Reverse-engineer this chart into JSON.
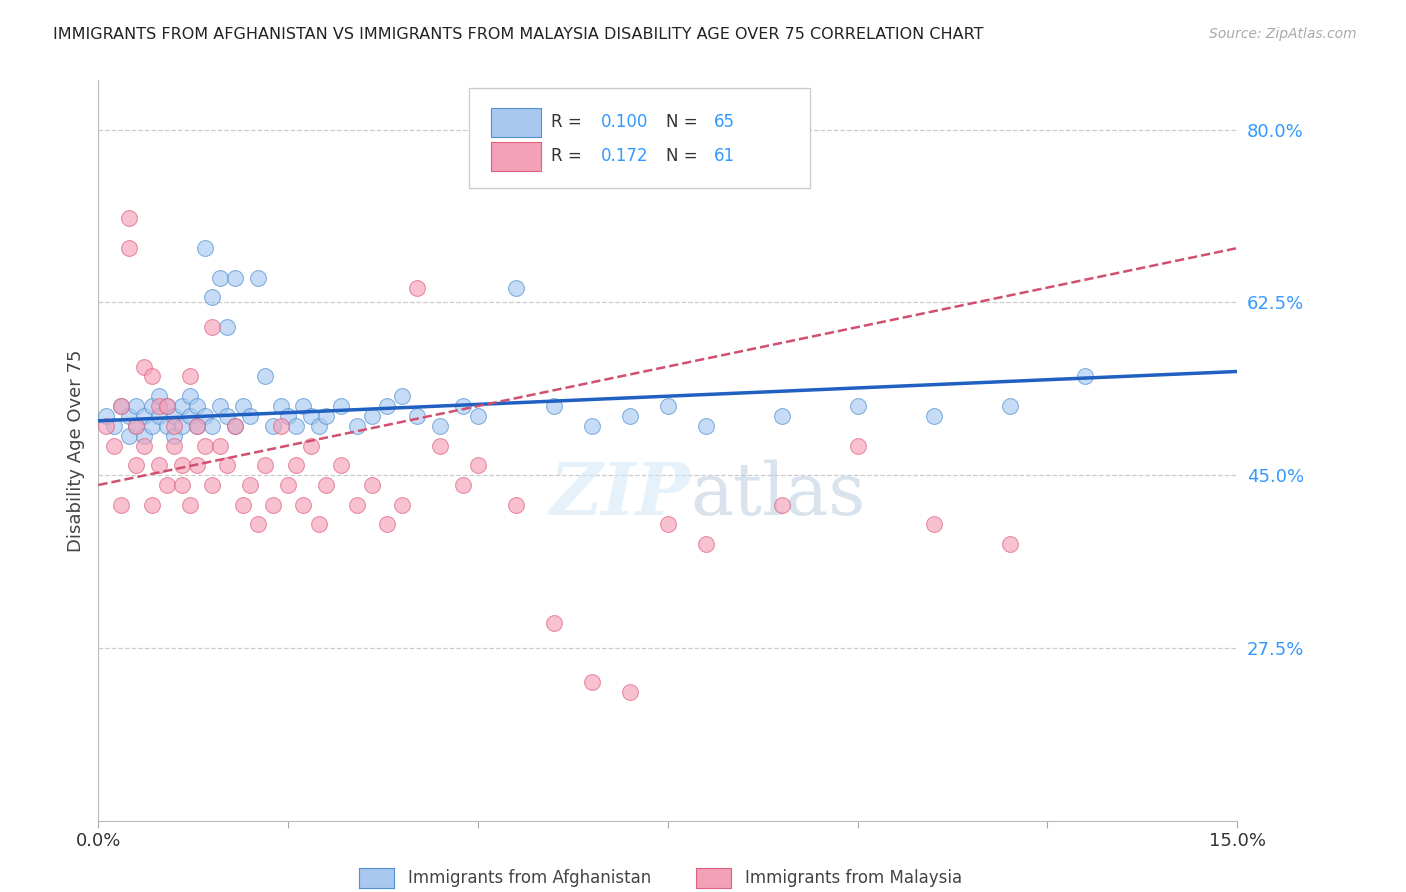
{
  "title": "IMMIGRANTS FROM AFGHANISTAN VS IMMIGRANTS FROM MALAYSIA DISABILITY AGE OVER 75 CORRELATION CHART",
  "source": "Source: ZipAtlas.com",
  "ylabel": "Disability Age Over 75",
  "ylabel_ticks": [
    "80.0%",
    "62.5%",
    "45.0%",
    "27.5%"
  ],
  "ylabel_values": [
    0.8,
    0.625,
    0.45,
    0.275
  ],
  "xmin": 0.0,
  "xmax": 0.15,
  "ymin": 0.1,
  "ymax": 0.85,
  "afghanistan_color": "#a8c8f0",
  "malaysia_color": "#f4a0b8",
  "afghanistan_edge": "#5090d0",
  "malaysia_edge": "#e06080",
  "trend_afghanistan_color": "#2060c0",
  "trend_malaysia_color": "#d05070",
  "afghanistan_x": [
    0.001,
    0.002,
    0.003,
    0.004,
    0.004,
    0.005,
    0.005,
    0.006,
    0.006,
    0.007,
    0.007,
    0.008,
    0.008,
    0.009,
    0.009,
    0.01,
    0.01,
    0.011,
    0.011,
    0.012,
    0.012,
    0.013,
    0.013,
    0.014,
    0.014,
    0.015,
    0.015,
    0.016,
    0.016,
    0.017,
    0.017,
    0.018,
    0.018,
    0.019,
    0.02,
    0.021,
    0.022,
    0.023,
    0.024,
    0.025,
    0.026,
    0.027,
    0.028,
    0.029,
    0.03,
    0.032,
    0.034,
    0.036,
    0.038,
    0.04,
    0.042,
    0.045,
    0.048,
    0.05,
    0.055,
    0.06,
    0.065,
    0.07,
    0.075,
    0.08,
    0.09,
    0.1,
    0.11,
    0.12,
    0.13
  ],
  "afghanistan_y": [
    0.51,
    0.5,
    0.52,
    0.49,
    0.51,
    0.5,
    0.52,
    0.51,
    0.49,
    0.52,
    0.5,
    0.51,
    0.53,
    0.5,
    0.52,
    0.51,
    0.49,
    0.52,
    0.5,
    0.53,
    0.51,
    0.5,
    0.52,
    0.68,
    0.51,
    0.63,
    0.5,
    0.65,
    0.52,
    0.6,
    0.51,
    0.65,
    0.5,
    0.52,
    0.51,
    0.65,
    0.55,
    0.5,
    0.52,
    0.51,
    0.5,
    0.52,
    0.51,
    0.5,
    0.51,
    0.52,
    0.5,
    0.51,
    0.52,
    0.53,
    0.51,
    0.5,
    0.52,
    0.51,
    0.64,
    0.52,
    0.5,
    0.51,
    0.52,
    0.5,
    0.51,
    0.52,
    0.51,
    0.52,
    0.55
  ],
  "malaysia_x": [
    0.001,
    0.002,
    0.003,
    0.003,
    0.004,
    0.004,
    0.005,
    0.005,
    0.006,
    0.006,
    0.007,
    0.007,
    0.008,
    0.008,
    0.009,
    0.009,
    0.01,
    0.01,
    0.011,
    0.011,
    0.012,
    0.012,
    0.013,
    0.013,
    0.014,
    0.015,
    0.015,
    0.016,
    0.017,
    0.018,
    0.019,
    0.02,
    0.021,
    0.022,
    0.023,
    0.024,
    0.025,
    0.026,
    0.027,
    0.028,
    0.029,
    0.03,
    0.032,
    0.034,
    0.036,
    0.038,
    0.04,
    0.042,
    0.045,
    0.048,
    0.05,
    0.055,
    0.06,
    0.065,
    0.07,
    0.075,
    0.08,
    0.09,
    0.1,
    0.11,
    0.12
  ],
  "malaysia_y": [
    0.5,
    0.48,
    0.52,
    0.42,
    0.68,
    0.71,
    0.5,
    0.46,
    0.56,
    0.48,
    0.55,
    0.42,
    0.52,
    0.46,
    0.44,
    0.52,
    0.48,
    0.5,
    0.46,
    0.44,
    0.55,
    0.42,
    0.5,
    0.46,
    0.48,
    0.44,
    0.6,
    0.48,
    0.46,
    0.5,
    0.42,
    0.44,
    0.4,
    0.46,
    0.42,
    0.5,
    0.44,
    0.46,
    0.42,
    0.48,
    0.4,
    0.44,
    0.46,
    0.42,
    0.44,
    0.4,
    0.42,
    0.64,
    0.48,
    0.44,
    0.46,
    0.42,
    0.3,
    0.24,
    0.23,
    0.4,
    0.38,
    0.42,
    0.48,
    0.4,
    0.38
  ]
}
